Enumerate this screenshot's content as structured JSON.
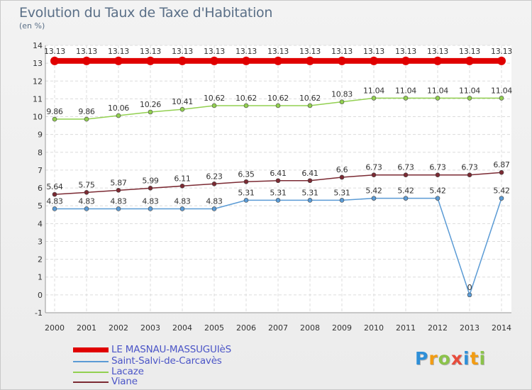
{
  "chart_data": {
    "type": "line",
    "title": "Evolution du Taux de Taxe d'Habitation",
    "subtitle": "(en %)",
    "xlabel": "",
    "ylabel": "",
    "ylim": [
      -1,
      14
    ],
    "yticks": [
      -1,
      0,
      1,
      2,
      3,
      4,
      5,
      6,
      7,
      8,
      9,
      10,
      11,
      12,
      13,
      14
    ],
    "grid": true,
    "categories": [
      "2000",
      "2001",
      "2002",
      "2003",
      "2004",
      "2005",
      "2006",
      "2007",
      "2008",
      "2009",
      "2010",
      "2011",
      "2012",
      "2013",
      "2014"
    ],
    "series": [
      {
        "name": "LE MASNAU-MASSUGUIèS",
        "color": "#e00000",
        "values": [
          13.13,
          13.13,
          13.13,
          13.13,
          13.13,
          13.13,
          13.13,
          13.13,
          13.13,
          13.13,
          13.13,
          13.13,
          13.13,
          13.13,
          13.13
        ],
        "labels": [
          "13.13",
          "13.13",
          "13.13",
          "13.13",
          "13.13",
          "13.13",
          "13.13",
          "13.13",
          "13.13",
          "13.13",
          "13.13",
          "13.13",
          "13.13",
          "13.13",
          "13.13"
        ]
      },
      {
        "name": "Saint-Salvi-de-Carcavès",
        "color": "#5b9bd5",
        "values": [
          4.83,
          4.83,
          4.83,
          4.83,
          4.83,
          4.83,
          5.31,
          5.31,
          5.31,
          5.31,
          5.42,
          5.42,
          5.42,
          0,
          5.42
        ],
        "labels": [
          "4.83",
          "4.83",
          "4.83",
          "4.83",
          "4.83",
          "4.83",
          "5.31",
          "5.31",
          "5.31",
          "5.31",
          "5.42",
          "5.42",
          "5.42",
          "0",
          "5.42"
        ]
      },
      {
        "name": "Lacaze",
        "color": "#92d050",
        "values": [
          9.86,
          9.86,
          10.06,
          10.26,
          10.41,
          10.62,
          10.62,
          10.62,
          10.62,
          10.83,
          11.04,
          11.04,
          11.04,
          11.04,
          11.04
        ],
        "labels": [
          "9.86",
          "9.86",
          "10.06",
          "10.26",
          "10.41",
          "10.62",
          "10.62",
          "10.62",
          "10.62",
          "10.83",
          "11.04",
          "11.04",
          "11.04",
          "11.04",
          "11.04"
        ]
      },
      {
        "name": "Viane",
        "color": "#7b2a33",
        "values": [
          5.64,
          5.75,
          5.87,
          5.99,
          6.11,
          6.23,
          6.35,
          6.41,
          6.41,
          6.6,
          6.73,
          6.73,
          6.73,
          6.73,
          6.87
        ],
        "labels": [
          "5.64",
          "5.75",
          "5.87",
          "5.99",
          "6.11",
          "6.23",
          "6.35",
          "6.41",
          "6.41",
          "6.6",
          "6.73",
          "6.73",
          "6.73",
          "6.73",
          "6.87"
        ]
      }
    ]
  },
  "logo": {
    "letters": [
      "P",
      "r",
      "o",
      "x",
      "i",
      "t",
      "i"
    ],
    "colors": [
      "#2e8fd8",
      "#f39c12",
      "#8bc34a",
      "#e74c3c",
      "#2e8fd8",
      "#f39c12",
      "#8bc34a"
    ]
  }
}
